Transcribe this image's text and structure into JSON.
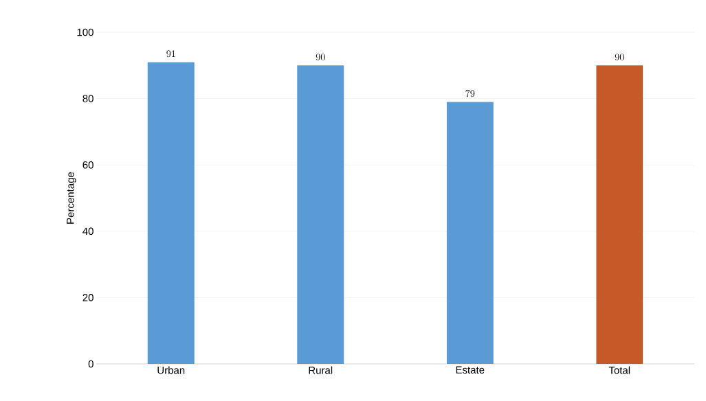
{
  "chart_data": {
    "type": "bar",
    "ylabel": "Percentage",
    "categories": [
      "Urban",
      "Rural",
      "Estate",
      "Total"
    ],
    "values": [
      91,
      90,
      79,
      90
    ],
    "colors": [
      "#5b9bd5",
      "#5b9bd5",
      "#5b9bd5",
      "#c55a28"
    ],
    "ylim": [
      0,
      100
    ],
    "yticks": [
      0,
      20,
      40,
      60,
      80,
      100
    ],
    "grid": "y",
    "data_labels": true
  }
}
